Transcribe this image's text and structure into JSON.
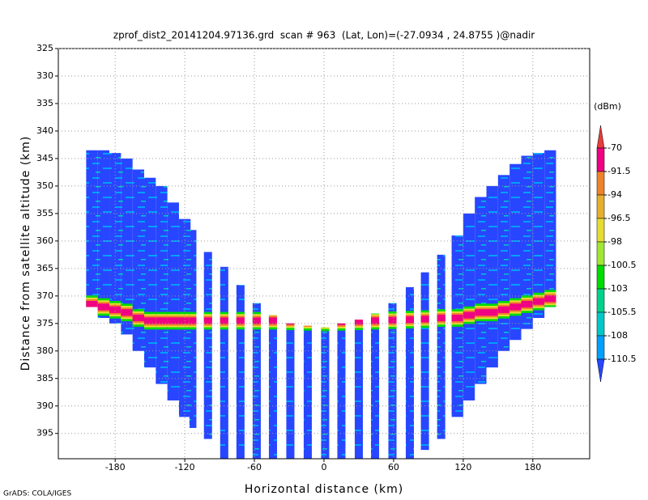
{
  "chart_data": {
    "type": "echo-profile",
    "title": "zprof_dist2_20141204.97136.grd  scan # 963  (Lat, Lon)=(-27.0934 , 24.8755 )@nadir",
    "xlabel": "Horizontal distance (km)",
    "ylabel": "Distance from satellite altitude (km)",
    "footer": "GrADS: COLA/IGES",
    "xlim": [
      -229,
      229
    ],
    "ylim": [
      325,
      399.6
    ],
    "xticks": [
      -180,
      -120,
      -60,
      0,
      60,
      120,
      180
    ],
    "yticks": [
      325,
      330,
      335,
      340,
      345,
      350,
      355,
      360,
      365,
      370,
      375,
      380,
      385,
      390,
      395
    ],
    "grid": true,
    "columns": {
      "x": [
        -200,
        -190,
        -180,
        -170,
        -160,
        -150,
        -140,
        -130,
        -120,
        -113,
        -100,
        -86,
        -72,
        -58,
        -44,
        -29,
        -14,
        1,
        15,
        30,
        44,
        59,
        74,
        87,
        101,
        115,
        125,
        135,
        145,
        155,
        165,
        175,
        185,
        195
      ],
      "width": [
        10,
        10,
        10,
        10,
        10,
        10,
        10,
        10,
        10,
        6,
        7,
        7,
        7,
        7,
        7,
        7,
        7,
        7,
        7,
        7,
        7,
        7,
        7,
        7,
        7,
        10,
        10,
        10,
        10,
        10,
        10,
        10,
        10,
        10
      ],
      "top": [
        343.5,
        343.5,
        344,
        345,
        347,
        348.5,
        350,
        353,
        356,
        358,
        362,
        364.7,
        368,
        371.3,
        373.5,
        375,
        375.4,
        375.7,
        375,
        374.3,
        373.2,
        371.3,
        368.4,
        365.7,
        362.5,
        359,
        355,
        352,
        350,
        348,
        346,
        344.5,
        344,
        343.5
      ],
      "bottom": [
        372,
        374,
        375,
        377,
        380,
        383,
        386,
        389,
        392,
        394,
        396,
        399.6,
        399.6,
        399.6,
        399.6,
        399.6,
        399.6,
        399.6,
        399.6,
        399.6,
        399.6,
        399.6,
        399.6,
        398,
        396,
        392,
        389,
        386,
        383,
        380,
        378,
        376,
        374,
        372
      ],
      "surface": [
        371.5,
        372,
        372.5,
        373,
        374,
        374.5,
        374.5,
        374.5,
        374.5,
        374.5,
        374.5,
        374.5,
        374.5,
        374.5,
        374.5,
        374.6,
        374.7,
        374.8,
        374.7,
        374.6,
        374.5,
        374.4,
        374.3,
        374.2,
        374,
        374,
        373.5,
        373,
        373,
        372.5,
        372,
        371.5,
        371,
        370.5
      ]
    },
    "colorbar": {
      "label": "(dBm)",
      "levels": [
        -70,
        -91.5,
        -94,
        -96.5,
        -98,
        -100.5,
        -103,
        -105.5,
        -108,
        -110.5
      ],
      "colors": [
        "#e63c3c",
        "#f00082",
        "#f08228",
        "#e6af2d",
        "#e6dc32",
        "#a0e632",
        "#00dc00",
        "#00d28c",
        "#00c8c8",
        "#00a0ff",
        "#2846ff"
      ]
    }
  }
}
